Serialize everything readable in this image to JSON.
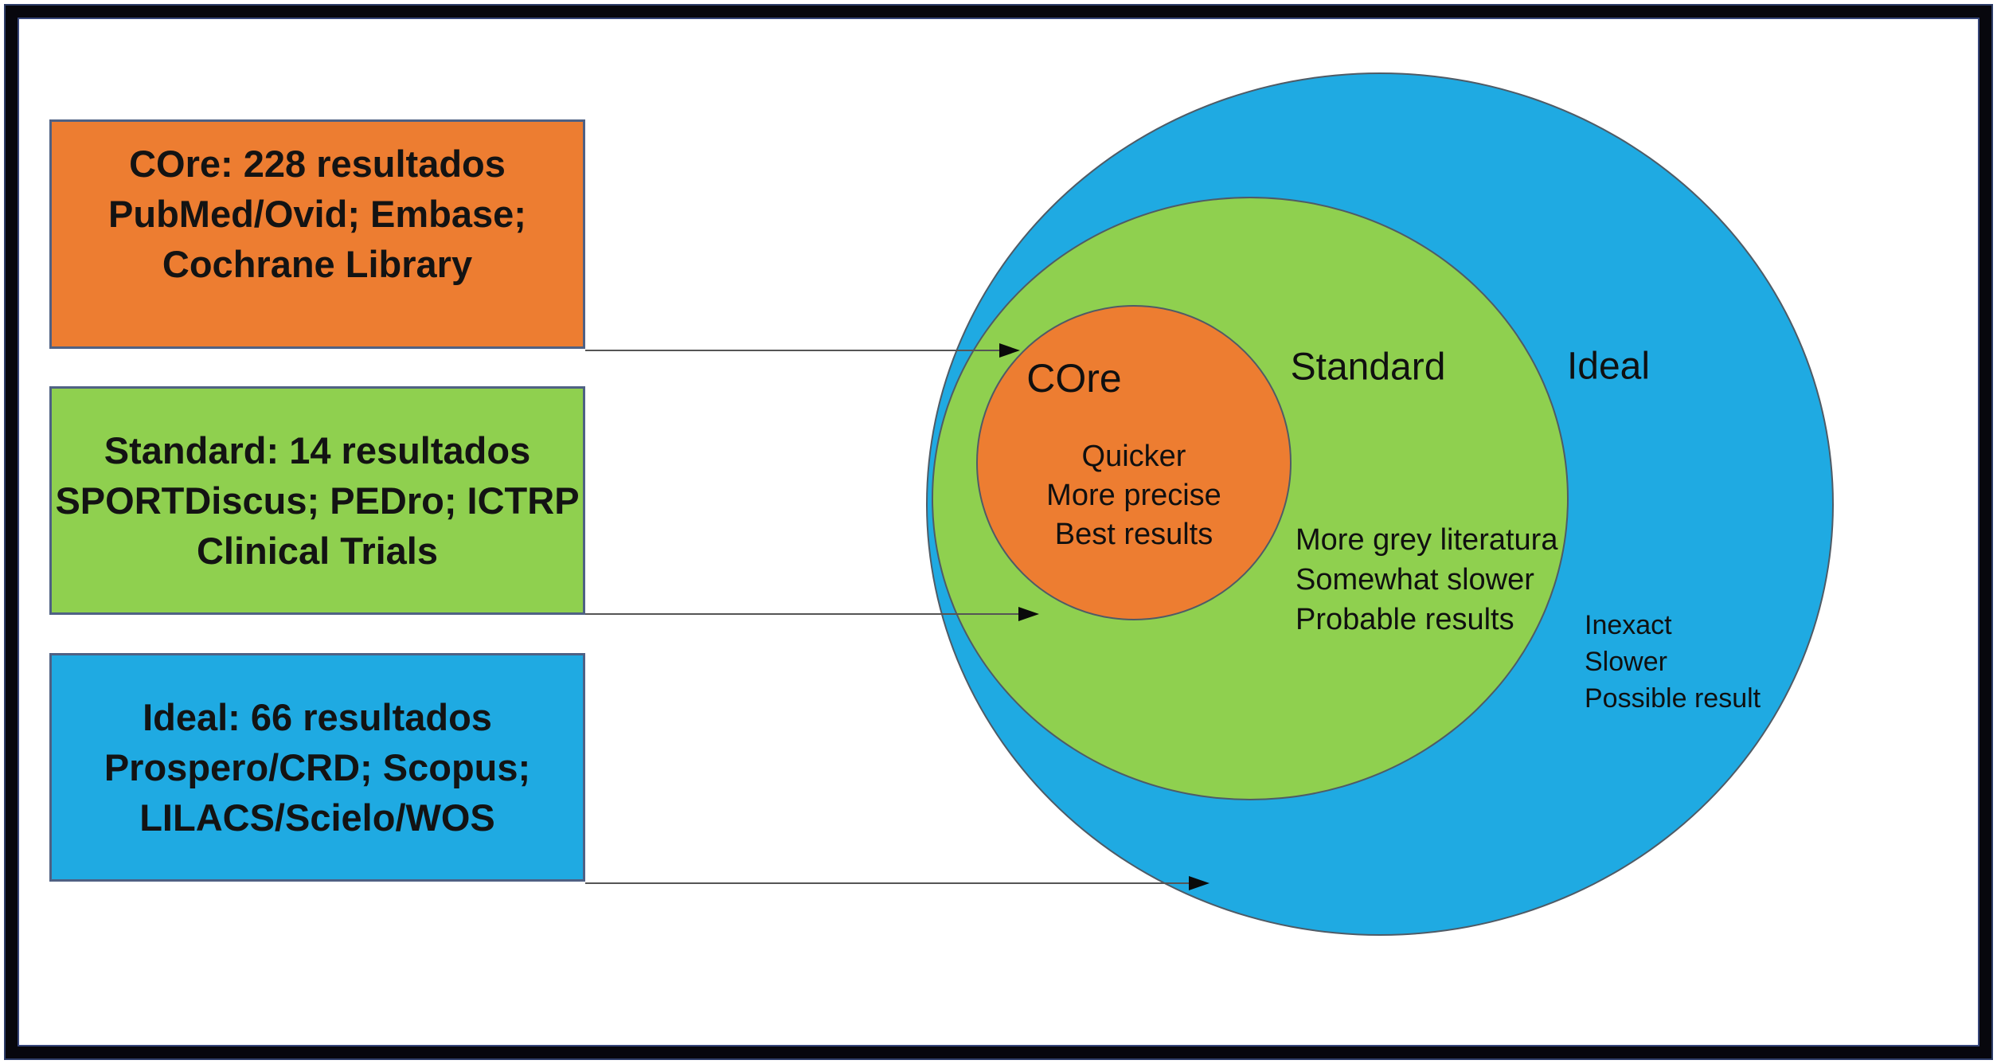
{
  "frame_color": "#07070d",
  "boxes": [
    {
      "id": "core",
      "fill": "#ED7D31",
      "border": "#4f6184",
      "lines": [
        "COre: 228 resultados",
        "PubMed/Ovid; Embase;",
        "Cochrane Library"
      ]
    },
    {
      "id": "standard",
      "fill": "#8FD04F",
      "border": "#4f6184",
      "lines": [
        "Standard: 14 resultados",
        "SPORTDiscus; PEDro; ICTRP",
        "Clinical Trials"
      ]
    },
    {
      "id": "ideal",
      "fill": "#1FAAE2",
      "border": "#4f6184",
      "lines": [
        "Ideal: 66 resultados",
        "Prospero/CRD; Scopus;",
        "LILACS/Scielo/WOS"
      ]
    }
  ],
  "circles": [
    {
      "id": "ideal",
      "label": "Ideal",
      "fill": "#1FAAE2",
      "outline": "#4f5b66",
      "notes": [
        "Inexact",
        "Slower",
        "Possible result"
      ]
    },
    {
      "id": "standard",
      "label": "Standard",
      "fill": "#8FD04F",
      "outline": "#4f5b66",
      "notes": [
        "More grey literatura",
        "Somewhat slower",
        "Probable results"
      ]
    },
    {
      "id": "core",
      "label": "COre",
      "fill": "#ED7D31",
      "outline": "#4f5b66",
      "notes": [
        "Quicker",
        "More precise",
        "Best results"
      ]
    }
  ]
}
